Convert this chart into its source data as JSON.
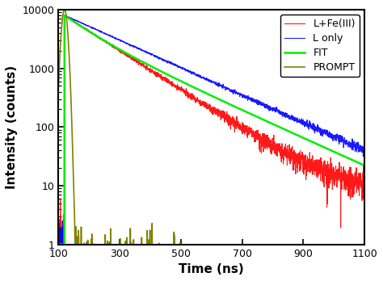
{
  "title": "",
  "xlabel": "Time (ns)",
  "ylabel": "Intensity (counts)",
  "xlim": [
    100,
    1100
  ],
  "ylim": [
    1,
    10000
  ],
  "xticks": [
    100,
    300,
    500,
    700,
    900,
    1100
  ],
  "background_color": "#ffffff",
  "series": {
    "PROMPT": {
      "color": "#808000",
      "lw": 1.2
    },
    "L only": {
      "color": "#0000ff",
      "lw": 0.8
    },
    "L+Fe(III)": {
      "color": "#ff0000",
      "lw": 0.8
    },
    "FIT": {
      "color": "#00ee00",
      "lw": 1.8
    }
  },
  "noise_seed": 42
}
